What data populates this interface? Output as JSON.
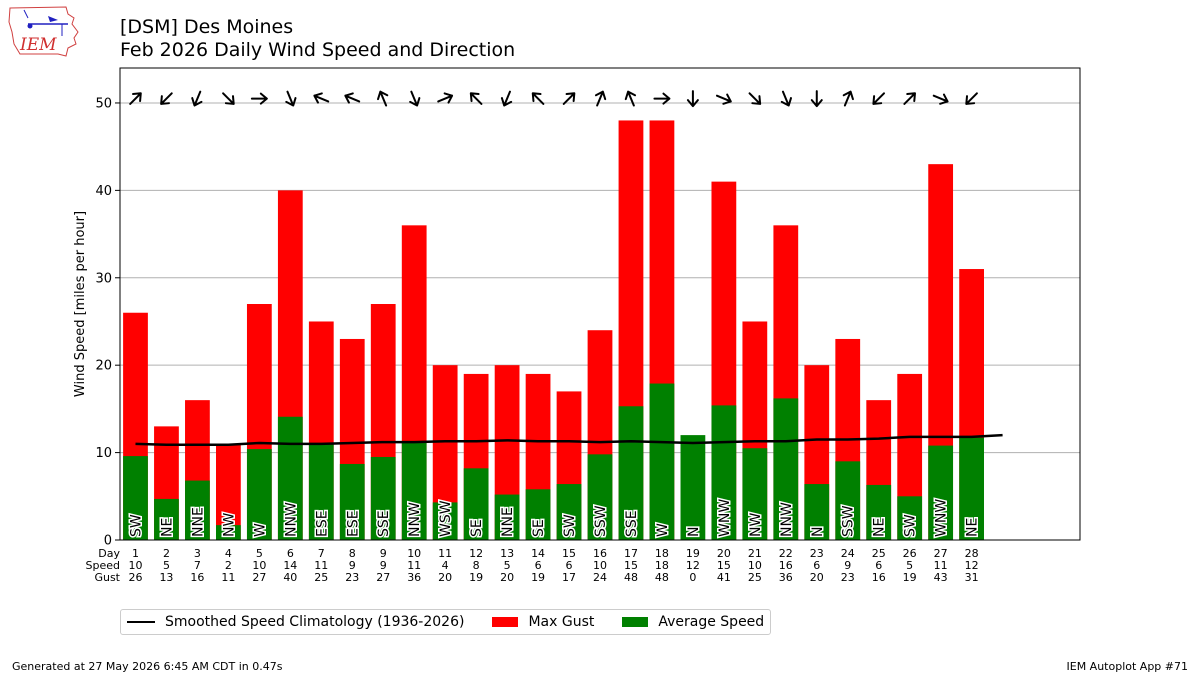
{
  "title_line1": "[DSM] Des Moines",
  "title_line2": "Feb 2026 Daily Wind Speed and Direction",
  "logo_text": "IEM",
  "footer_left": "Generated at 27 May 2026 6:45 AM CDT in 0.47s",
  "footer_right": "IEM Autoplot App #71",
  "colors": {
    "gust": "#ff0000",
    "average": "#008000",
    "climo": "#000000",
    "grid": "#b0b0b0"
  },
  "chart_data": {
    "type": "bar",
    "title": "Feb 2026 Daily Wind Speed and Direction",
    "ylabel": "Wind Speed [miles per hour]",
    "xlabel": "",
    "ylim": [
      0,
      54
    ],
    "xlim": [
      0.5,
      31.5
    ],
    "yticks": [
      0,
      10,
      20,
      30,
      40,
      50
    ],
    "grid": "horizontal",
    "legend_position": "bottom-left, below plot",
    "days": [
      1,
      2,
      3,
      4,
      5,
      6,
      7,
      8,
      9,
      10,
      11,
      12,
      13,
      14,
      15,
      16,
      17,
      18,
      19,
      20,
      21,
      22,
      23,
      24,
      25,
      26,
      27,
      28
    ],
    "directions": [
      "SW",
      "NE",
      "NNE",
      "NW",
      "W",
      "NNW",
      "ESE",
      "ESE",
      "SSE",
      "NNW",
      "WSW",
      "SE",
      "NNE",
      "SE",
      "SW",
      "SSW",
      "SSE",
      "W",
      "N",
      "WNW",
      "NW",
      "NNW",
      "N",
      "SSW",
      "NE",
      "SW",
      "WNW",
      "NE"
    ],
    "series": [
      {
        "name": "Max Gust",
        "values": [
          26,
          13,
          16,
          11,
          27,
          40,
          25,
          23,
          27,
          36,
          20,
          19,
          20,
          19,
          17,
          24,
          48,
          48,
          0,
          41,
          25,
          36,
          20,
          23,
          16,
          19,
          43,
          31
        ]
      },
      {
        "name": "Average Speed",
        "values": [
          9.6,
          4.7,
          6.8,
          1.7,
          10.4,
          14.1,
          11.0,
          8.7,
          9.5,
          11.1,
          4.3,
          8.2,
          5.2,
          5.8,
          6.4,
          9.8,
          15.3,
          17.9,
          12.0,
          15.4,
          10.5,
          16.2,
          6.4,
          9.0,
          6.3,
          5.0,
          10.8,
          11.7
        ]
      },
      {
        "name": "Smoothed Speed Climatology (1936-2026)",
        "x": [
          1,
          2,
          3,
          4,
          5,
          6,
          7,
          8,
          9,
          10,
          11,
          12,
          13,
          14,
          15,
          16,
          17,
          18,
          19,
          20,
          21,
          22,
          23,
          24,
          25,
          26,
          27,
          28,
          29
        ],
        "values": [
          11.0,
          10.9,
          10.9,
          10.9,
          11.1,
          11.0,
          11.0,
          11.1,
          11.2,
          11.2,
          11.3,
          11.3,
          11.4,
          11.3,
          11.3,
          11.2,
          11.3,
          11.2,
          11.1,
          11.2,
          11.3,
          11.3,
          11.5,
          11.5,
          11.6,
          11.8,
          11.8,
          11.8,
          12.0
        ]
      }
    ],
    "table": {
      "row_labels": [
        "Day",
        "Speed",
        "Gust"
      ],
      "speed": [
        10,
        5,
        7,
        2,
        10,
        14,
        11,
        9,
        9,
        11,
        4,
        8,
        5,
        6,
        6,
        10,
        15,
        18,
        12,
        15,
        10,
        16,
        6,
        9,
        6,
        5,
        11,
        12
      ],
      "gust": [
        26,
        13,
        16,
        11,
        27,
        40,
        25,
        23,
        27,
        36,
        20,
        19,
        20,
        19,
        17,
        24,
        48,
        48,
        0,
        41,
        25,
        36,
        20,
        23,
        16,
        19,
        43,
        31
      ]
    },
    "arrow_directions_deg": [
      225,
      45,
      22.5,
      315,
      270,
      337.5,
      112.5,
      112.5,
      157.5,
      337.5,
      247.5,
      135,
      22.5,
      135,
      225,
      202.5,
      157.5,
      270,
      0,
      292.5,
      315,
      337.5,
      0,
      202.5,
      45,
      225,
      292.5,
      45
    ]
  }
}
